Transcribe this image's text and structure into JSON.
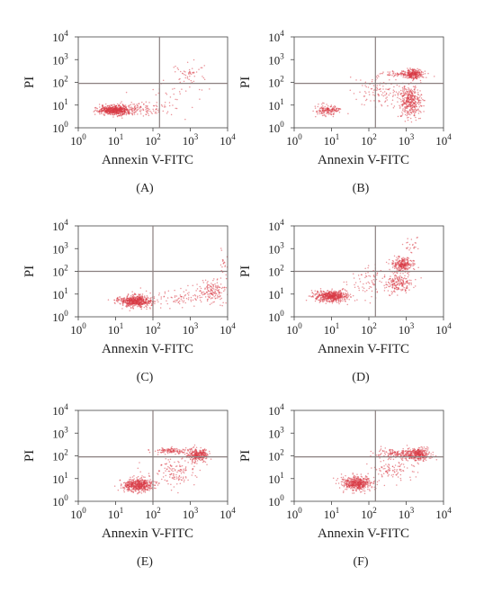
{
  "figure": {
    "panels": [
      {
        "label": "(A)"
      },
      {
        "label": "(B)"
      },
      {
        "label": "(C)"
      },
      {
        "label": "(D)"
      },
      {
        "label": "(E)"
      },
      {
        "label": "(F)"
      }
    ]
  },
  "chart_data": [
    {
      "type": "scatter",
      "title": "",
      "panel_label": "(A)",
      "xlabel": "Annexin V-FITC",
      "ylabel": "PI",
      "x_scale": "log",
      "y_scale": "log",
      "xlim": [
        1,
        10000
      ],
      "ylim": [
        1,
        10000
      ],
      "x_ticks": [
        1,
        10,
        100,
        1000,
        10000
      ],
      "y_ticks": [
        1,
        10,
        100,
        1000,
        10000
      ],
      "tick_base": "10",
      "tick_exponents": [
        "0",
        "1",
        "2",
        "3",
        "4"
      ],
      "quadrant_gates": {
        "x": 150,
        "y": 90
      },
      "point_color": "#d83a46",
      "gate_color": "#8a7f7f",
      "clusters": [
        {
          "x": 10,
          "y": 6,
          "spread_x": 0.22,
          "spread_y": 0.11,
          "n": 650
        },
        {
          "x": 70,
          "y": 7,
          "spread_x": 0.3,
          "spread_y": 0.15,
          "n": 90
        },
        {
          "x": 1000,
          "y": 250,
          "spread_x": 0.18,
          "spread_y": 0.22,
          "n": 45
        },
        {
          "x": 300,
          "y": 30,
          "spread_x": 0.45,
          "spread_y": 0.45,
          "n": 35
        }
      ]
    },
    {
      "type": "scatter",
      "title": "",
      "panel_label": "(B)",
      "xlabel": "Annexin V-FITC",
      "ylabel": "PI",
      "x_scale": "log",
      "y_scale": "log",
      "xlim": [
        1,
        10000
      ],
      "ylim": [
        1,
        10000
      ],
      "x_ticks": [
        1,
        10,
        100,
        1000,
        10000
      ],
      "y_ticks": [
        1,
        10,
        100,
        1000,
        10000
      ],
      "tick_base": "10",
      "tick_exponents": [
        "0",
        "1",
        "2",
        "3",
        "4"
      ],
      "quadrant_gates": {
        "x": 150,
        "y": 90
      },
      "point_color": "#d83a46",
      "gate_color": "#8a7f7f",
      "clusters": [
        {
          "x": 8,
          "y": 6,
          "spread_x": 0.17,
          "spread_y": 0.12,
          "n": 170
        },
        {
          "x": 1500,
          "y": 220,
          "spread_x": 0.13,
          "spread_y": 0.12,
          "n": 260
        },
        {
          "x": 1300,
          "y": 15,
          "spread_x": 0.15,
          "spread_y": 0.35,
          "n": 380
        },
        {
          "x": 200,
          "y": 40,
          "spread_x": 0.35,
          "spread_y": 0.35,
          "n": 110
        },
        {
          "x": 600,
          "y": 230,
          "spread_x": 0.3,
          "spread_y": 0.06,
          "n": 70
        }
      ]
    },
    {
      "type": "scatter",
      "title": "",
      "panel_label": "(C)",
      "xlabel": "Annexin V-FITC",
      "ylabel": "PI",
      "x_scale": "log",
      "y_scale": "log",
      "xlim": [
        1,
        10000
      ],
      "ylim": [
        1,
        10000
      ],
      "x_ticks": [
        1,
        10,
        100,
        1000,
        10000
      ],
      "y_ticks": [
        1,
        10,
        100,
        1000,
        10000
      ],
      "tick_base": "10",
      "tick_exponents": [
        "0",
        "1",
        "2",
        "3",
        "4"
      ],
      "quadrant_gates": {
        "x": 100,
        "y": 100
      },
      "point_color": "#d83a46",
      "gate_color": "#8a7f7f",
      "clusters": [
        {
          "x": 35,
          "y": 5,
          "spread_x": 0.22,
          "spread_y": 0.13,
          "n": 600
        },
        {
          "x": 4000,
          "y": 12,
          "spread_x": 0.18,
          "spread_y": 0.25,
          "n": 140
        },
        {
          "x": 600,
          "y": 7,
          "spread_x": 0.4,
          "spread_y": 0.2,
          "n": 90
        },
        {
          "x": 8000,
          "y": 300,
          "spread_x": 0.06,
          "spread_y": 0.35,
          "n": 20
        }
      ]
    },
    {
      "type": "scatter",
      "title": "",
      "panel_label": "(D)",
      "xlabel": "Annexin V-FITC",
      "ylabel": "PI",
      "x_scale": "log",
      "y_scale": "log",
      "xlim": [
        1,
        10000
      ],
      "ylim": [
        1,
        10000
      ],
      "x_ticks": [
        1,
        10,
        100,
        1000,
        10000
      ],
      "y_ticks": [
        1,
        10,
        100,
        1000,
        10000
      ],
      "tick_base": "10",
      "tick_exponents": [
        "0",
        "1",
        "2",
        "3",
        "4"
      ],
      "quadrant_gates": {
        "x": 150,
        "y": 100
      },
      "point_color": "#d83a46",
      "gate_color": "#8a7f7f",
      "clusters": [
        {
          "x": 10,
          "y": 8,
          "spread_x": 0.23,
          "spread_y": 0.12,
          "n": 550
        },
        {
          "x": 800,
          "y": 200,
          "spread_x": 0.15,
          "spread_y": 0.15,
          "n": 260
        },
        {
          "x": 600,
          "y": 30,
          "spread_x": 0.17,
          "spread_y": 0.2,
          "n": 180
        },
        {
          "x": 150,
          "y": 30,
          "spread_x": 0.4,
          "spread_y": 0.4,
          "n": 90
        },
        {
          "x": 1500,
          "y": 1200,
          "spread_x": 0.15,
          "spread_y": 0.2,
          "n": 25
        }
      ]
    },
    {
      "type": "scatter",
      "title": "",
      "panel_label": "(E)",
      "xlabel": "Annexin V-FITC",
      "ylabel": "PI",
      "x_scale": "log",
      "y_scale": "log",
      "xlim": [
        1,
        10000
      ],
      "ylim": [
        1,
        10000
      ],
      "x_ticks": [
        1,
        10,
        100,
        1000,
        10000
      ],
      "y_ticks": [
        1,
        10,
        100,
        1000,
        10000
      ],
      "tick_base": "10",
      "tick_exponents": [
        "0",
        "1",
        "2",
        "3",
        "4"
      ],
      "quadrant_gates": {
        "x": 100,
        "y": 90
      },
      "point_color": "#d83a46",
      "gate_color": "#8a7f7f",
      "clusters": [
        {
          "x": 40,
          "y": 5,
          "spread_x": 0.2,
          "spread_y": 0.14,
          "n": 520
        },
        {
          "x": 1600,
          "y": 110,
          "spread_x": 0.15,
          "spread_y": 0.13,
          "n": 300
        },
        {
          "x": 300,
          "y": 170,
          "spread_x": 0.25,
          "spread_y": 0.07,
          "n": 120
        },
        {
          "x": 400,
          "y": 20,
          "spread_x": 0.35,
          "spread_y": 0.3,
          "n": 130
        }
      ]
    },
    {
      "type": "scatter",
      "title": "",
      "panel_label": "(F)",
      "xlabel": "Annexin V-FITC",
      "ylabel": "PI",
      "x_scale": "log",
      "y_scale": "log",
      "xlim": [
        1,
        10000
      ],
      "ylim": [
        1,
        10000
      ],
      "x_ticks": [
        1,
        10,
        100,
        1000,
        10000
      ],
      "y_ticks": [
        1,
        10,
        100,
        1000,
        10000
      ],
      "tick_base": "10",
      "tick_exponents": [
        "0",
        "1",
        "2",
        "3",
        "4"
      ],
      "quadrant_gates": {
        "x": 150,
        "y": 90
      },
      "point_color": "#d83a46",
      "gate_color": "#8a7f7f",
      "clusters": [
        {
          "x": 50,
          "y": 6,
          "spread_x": 0.2,
          "spread_y": 0.15,
          "n": 480
        },
        {
          "x": 2000,
          "y": 120,
          "spread_x": 0.17,
          "spread_y": 0.13,
          "n": 360
        },
        {
          "x": 500,
          "y": 130,
          "spread_x": 0.25,
          "spread_y": 0.1,
          "n": 120
        },
        {
          "x": 400,
          "y": 25,
          "spread_x": 0.35,
          "spread_y": 0.3,
          "n": 110
        }
      ]
    }
  ]
}
